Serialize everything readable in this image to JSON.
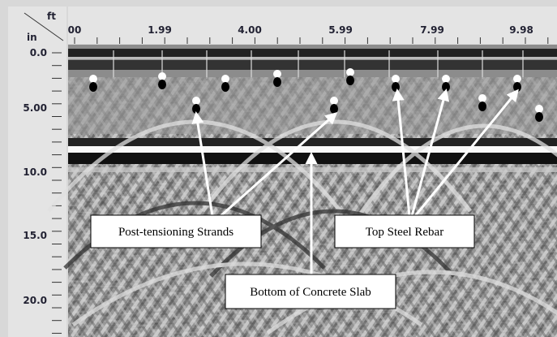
{
  "x_axis": {
    "unit": "ft",
    "labels": [
      "00",
      "1.99",
      "4.00",
      "5.99",
      "7.99",
      "9.98"
    ]
  },
  "y_axis": {
    "unit": "in",
    "labels": [
      "0.0",
      "5.00",
      "10.0",
      "15.0",
      "20.0"
    ]
  },
  "annotations": [
    "Post-tensioning Strands",
    "Top Steel Rebar",
    "Bottom of Concrete Slab"
  ]
}
